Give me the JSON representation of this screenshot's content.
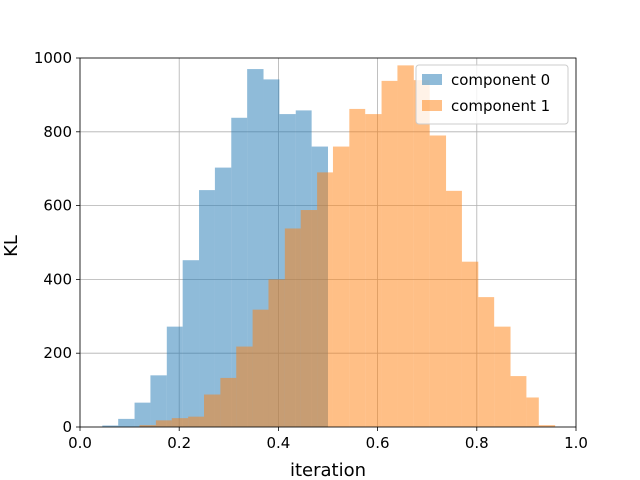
{
  "chart_data": {
    "type": "bar",
    "subtype": "histogram",
    "title": "",
    "xlabel": "iteration",
    "ylabel": "KL",
    "xlim": [
      0.0,
      1.0
    ],
    "ylim": [
      0,
      1000
    ],
    "xticks": [
      "0.0",
      "0.2",
      "0.4",
      "0.6",
      "0.8",
      "1.0"
    ],
    "yticks": [
      "0",
      "200",
      "400",
      "600",
      "800",
      "1000"
    ],
    "grid": true,
    "legend_position": "top-right",
    "series": [
      {
        "name": "component 0",
        "color": "#1f77b4",
        "opacity": 0.5,
        "bin_edges": [
          0.045,
          0.077,
          0.11,
          0.142,
          0.175,
          0.207,
          0.24,
          0.272,
          0.305,
          0.337,
          0.37,
          0.402,
          0.435,
          0.467,
          0.5
        ],
        "counts": [
          4,
          22,
          66,
          140,
          272,
          452,
          642,
          703,
          838,
          970,
          942,
          848,
          858,
          760
        ]
      },
      {
        "name": "component 1",
        "color": "#ff7f0e",
        "opacity": 0.5,
        "bin_edges": [
          0.12,
          0.153,
          0.185,
          0.218,
          0.25,
          0.283,
          0.315,
          0.348,
          0.38,
          0.413,
          0.445,
          0.478,
          0.51,
          0.543,
          0.575,
          0.608,
          0.64,
          0.673,
          0.705,
          0.738,
          0.77,
          0.803,
          0.835,
          0.868,
          0.9,
          0.925,
          0.958
        ],
        "counts": [
          5,
          18,
          24,
          28,
          88,
          133,
          218,
          318,
          400,
          538,
          588,
          690,
          760,
          862,
          848,
          938,
          980,
          940,
          790,
          640,
          448,
          352,
          272,
          138,
          80,
          5
        ]
      }
    ]
  }
}
